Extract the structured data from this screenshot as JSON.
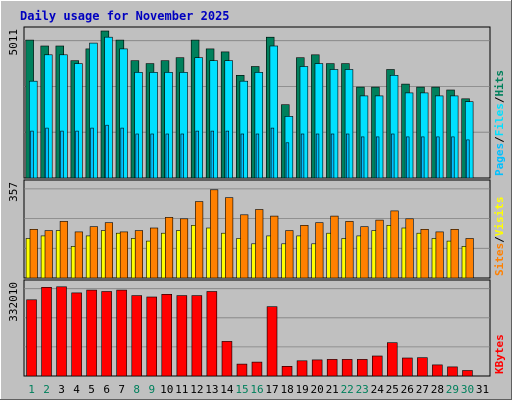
{
  "colors": {
    "frame_bg": "#c0c0c0",
    "plot_bg": "#c0c0c0",
    "grid": "#808080",
    "title": "#0000c0",
    "hits": "#00805c",
    "files": "#00e0ff",
    "pages": "#00c0ff",
    "visits": "#ffff00",
    "sites": "#ff8000",
    "kbytes": "#ff0000",
    "weekend_label": "#00805c",
    "weekday_label": "#000000"
  },
  "header": {
    "title": "Daily usage for November 2025"
  },
  "days": [
    "1",
    "2",
    "3",
    "4",
    "5",
    "6",
    "7",
    "8",
    "9",
    "10",
    "11",
    "12",
    "13",
    "14",
    "15",
    "16",
    "17",
    "18",
    "19",
    "20",
    "21",
    "22",
    "23",
    "24",
    "25",
    "26",
    "27",
    "28",
    "29",
    "30",
    "31"
  ],
  "weekend_days": [
    1,
    2,
    8,
    9,
    15,
    16,
    22,
    23,
    29,
    30
  ],
  "chart_data": [
    {
      "type": "bar",
      "name": "top",
      "max_label": "5011",
      "ymax": 5011,
      "ylim": [
        0,
        5011
      ],
      "grid_lines": 3,
      "categories": [
        "1",
        "2",
        "3",
        "4",
        "5",
        "6",
        "7",
        "8",
        "9",
        "10",
        "11",
        "12",
        "13",
        "14",
        "15",
        "16",
        "17",
        "18",
        "19",
        "20",
        "21",
        "22",
        "23",
        "24",
        "25",
        "26",
        "27",
        "28",
        "29",
        "30",
        "31"
      ],
      "legend": [
        {
          "label": "Hits",
          "color_key": "hits"
        },
        {
          "label": "Files",
          "color_key": "files"
        },
        {
          "label": "Pages",
          "color_key": "pages"
        }
      ],
      "series": [
        {
          "name": "Hits",
          "color_key": "hits",
          "values": [
            4700,
            4500,
            4500,
            4000,
            4400,
            5011,
            4700,
            4000,
            3900,
            4000,
            4100,
            4700,
            4400,
            4300,
            3500,
            3800,
            4800,
            2500,
            4100,
            4200,
            3900,
            3900,
            3100,
            3100,
            3700,
            3200,
            3100,
            3100,
            3000,
            2700,
            null
          ]
        },
        {
          "name": "Files",
          "color_key": "files",
          "values": [
            3300,
            4200,
            4200,
            3900,
            4600,
            4800,
            4400,
            3600,
            3600,
            3600,
            3600,
            4100,
            4000,
            4000,
            3300,
            3600,
            4500,
            2100,
            3800,
            3900,
            3700,
            3700,
            2800,
            2800,
            3500,
            2900,
            2900,
            2800,
            2800,
            2600,
            null
          ]
        },
        {
          "name": "Pages",
          "color_key": "pages",
          "values": [
            1600,
            1700,
            1600,
            1600,
            1700,
            1800,
            1700,
            1500,
            1500,
            1500,
            1500,
            1600,
            1600,
            1600,
            1500,
            1500,
            1700,
            1200,
            1500,
            1500,
            1500,
            1500,
            1400,
            1400,
            1500,
            1400,
            1400,
            1400,
            1400,
            1300,
            null
          ]
        }
      ]
    },
    {
      "type": "bar",
      "name": "middle",
      "max_label": "357",
      "ymax": 357,
      "ylim": [
        0,
        357
      ],
      "grid_lines": 3,
      "categories": [
        "1",
        "2",
        "3",
        "4",
        "5",
        "6",
        "7",
        "8",
        "9",
        "10",
        "11",
        "12",
        "13",
        "14",
        "15",
        "16",
        "17",
        "18",
        "19",
        "20",
        "21",
        "22",
        "23",
        "24",
        "25",
        "26",
        "27",
        "28",
        "29",
        "30",
        "31"
      ],
      "legend": [
        {
          "label": "Visits",
          "color_key": "visits"
        },
        {
          "label": "Sites",
          "color_key": "sites"
        }
      ],
      "series": [
        {
          "name": "Visits",
          "color_key": "visits",
          "values": [
            150,
            160,
            180,
            120,
            160,
            180,
            170,
            150,
            140,
            170,
            180,
            200,
            190,
            170,
            150,
            130,
            160,
            130,
            160,
            130,
            170,
            150,
            160,
            180,
            200,
            190,
            170,
            150,
            140,
            120,
            null
          ]
        },
        {
          "name": "Sites",
          "color_key": "sites",
          "values": [
            185,
            180,
            215,
            175,
            195,
            210,
            175,
            180,
            190,
            230,
            225,
            290,
            335,
            305,
            240,
            260,
            235,
            180,
            200,
            210,
            235,
            215,
            195,
            220,
            255,
            225,
            185,
            175,
            185,
            150,
            null
          ]
        }
      ]
    },
    {
      "type": "bar",
      "name": "bottom",
      "max_label": "332010",
      "ymax": 332010,
      "ylim": [
        0,
        332010
      ],
      "grid_lines": 3,
      "categories": [
        "1",
        "2",
        "3",
        "4",
        "5",
        "6",
        "7",
        "8",
        "9",
        "10",
        "11",
        "12",
        "13",
        "14",
        "15",
        "16",
        "17",
        "18",
        "19",
        "20",
        "21",
        "22",
        "23",
        "24",
        "25",
        "26",
        "27",
        "28",
        "29",
        "30",
        "31"
      ],
      "legend": [
        {
          "label": "KBytes",
          "color_key": "kbytes"
        }
      ],
      "series": [
        {
          "name": "KBytes",
          "color_key": "kbytes",
          "values": [
            275000,
            320000,
            322000,
            300000,
            310000,
            305000,
            310000,
            290000,
            285000,
            295000,
            290000,
            290000,
            305000,
            125000,
            43000,
            50000,
            250000,
            35000,
            55000,
            58000,
            60000,
            60000,
            60000,
            72000,
            120000,
            65000,
            66000,
            40000,
            33000,
            20000,
            null
          ]
        }
      ]
    }
  ]
}
